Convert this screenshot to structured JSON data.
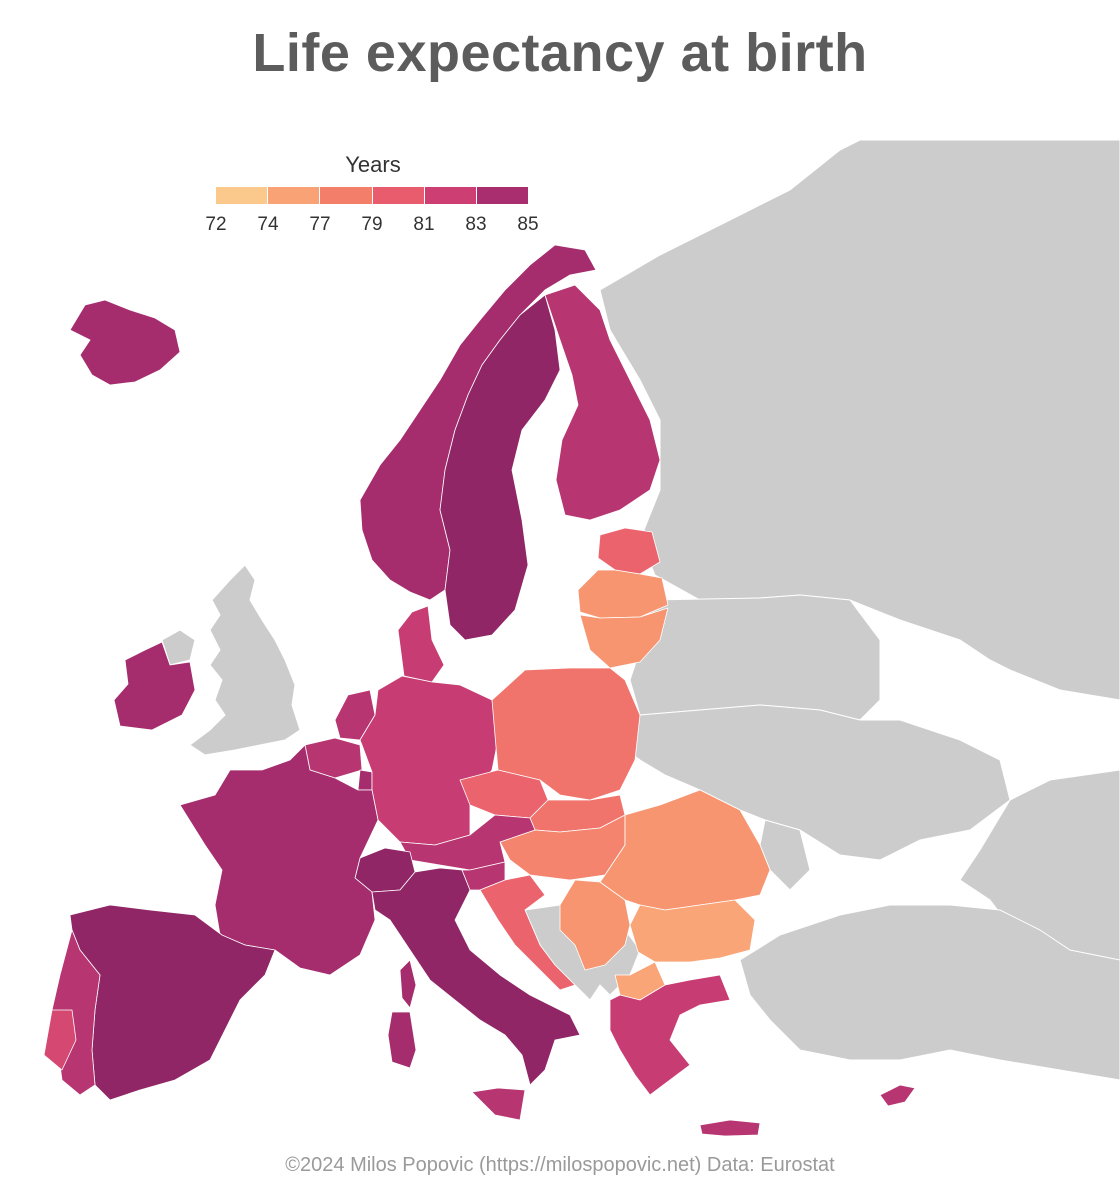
{
  "title": "Life expectancy at birth",
  "legend": {
    "title": "Years",
    "ticks": [
      "72",
      "74",
      "77",
      "79",
      "81",
      "83",
      "85"
    ],
    "colors": [
      "#fcc98c",
      "#f9a275",
      "#f37f6b",
      "#e85c6e",
      "#cd3f73",
      "#a92e6f",
      "#7a1f5e"
    ]
  },
  "no_data_color": "#cccccc",
  "regions": [
    {
      "id": "iceland",
      "value": 83
    },
    {
      "id": "norway",
      "value": 83
    },
    {
      "id": "sweden",
      "value": 84
    },
    {
      "id": "finland",
      "value": 82
    },
    {
      "id": "estonia",
      "value": 78
    },
    {
      "id": "latvia",
      "value": 75
    },
    {
      "id": "lithuania",
      "value": 75
    },
    {
      "id": "ireland",
      "value": 83
    },
    {
      "id": "denmark",
      "value": 81
    },
    {
      "id": "netherlands",
      "value": 82
    },
    {
      "id": "belgium",
      "value": 82
    },
    {
      "id": "luxembourg",
      "value": 83
    },
    {
      "id": "germany",
      "value": 81
    },
    {
      "id": "poland",
      "value": 77
    },
    {
      "id": "czechia",
      "value": 78
    },
    {
      "id": "slovakia",
      "value": 77
    },
    {
      "id": "hungary",
      "value": 76
    },
    {
      "id": "austria",
      "value": 82
    },
    {
      "id": "switzerland",
      "value": 84
    },
    {
      "id": "france",
      "value": 83
    },
    {
      "id": "spain",
      "value": 84
    },
    {
      "id": "portugal",
      "value": 82
    },
    {
      "id": "lisbon",
      "value": 80
    },
    {
      "id": "italy",
      "value": 84
    },
    {
      "id": "sicily",
      "value": 82
    },
    {
      "id": "sardinia",
      "value": 83
    },
    {
      "id": "corsica",
      "value": 83
    },
    {
      "id": "slovenia",
      "value": 82
    },
    {
      "id": "croatia",
      "value": 78
    },
    {
      "id": "romania",
      "value": 75
    },
    {
      "id": "bulgaria",
      "value": 74
    },
    {
      "id": "serbia",
      "value": 75
    },
    {
      "id": "north-macedonia",
      "value": 74
    },
    {
      "id": "greece",
      "value": 81
    },
    {
      "id": "crete",
      "value": 82
    },
    {
      "id": "cyprus",
      "value": 82
    }
  ],
  "footer": "©2024 Milos Popovic (https://milospopovic.net) Data: Eurostat"
}
